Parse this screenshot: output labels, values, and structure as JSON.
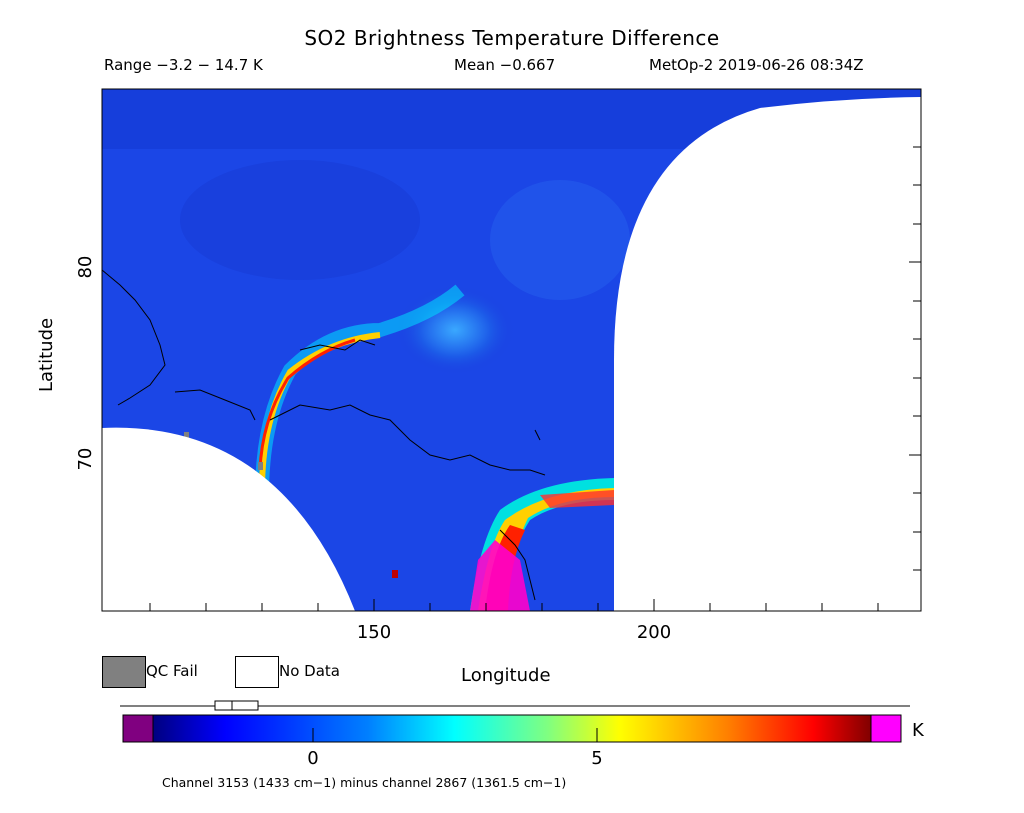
{
  "header": {
    "title": "SO2 Brightness Temperature Difference",
    "range": "Range −3.2 − 14.7 K",
    "mean": "Mean −0.667",
    "satellite": "MetOp-2 2019-06-26 08:34Z"
  },
  "axes": {
    "xlabel": "Longitude",
    "ylabel": "Latitude",
    "xticks": [
      "150",
      "200"
    ],
    "yticks": [
      "80",
      "70"
    ]
  },
  "legend": {
    "qc_fail": "QC Fail",
    "no_data": "No Data",
    "qc_fail_color": "#808080",
    "no_data_color": "#ffffff"
  },
  "colorbar": {
    "unit": "K",
    "ticks": [
      "0",
      "5"
    ],
    "underflow_color": "#800080",
    "overflow_color": "#ff00ff",
    "scale_colors": [
      "#000080",
      "#0000ff",
      "#00aaff",
      "#00ffff",
      "#80ff80",
      "#ffff00",
      "#ff8000",
      "#ff0000",
      "#800000"
    ]
  },
  "footnote": "Channel 3153 (1433 cm−1) minus channel 2867 (1361.5 cm−1)"
}
